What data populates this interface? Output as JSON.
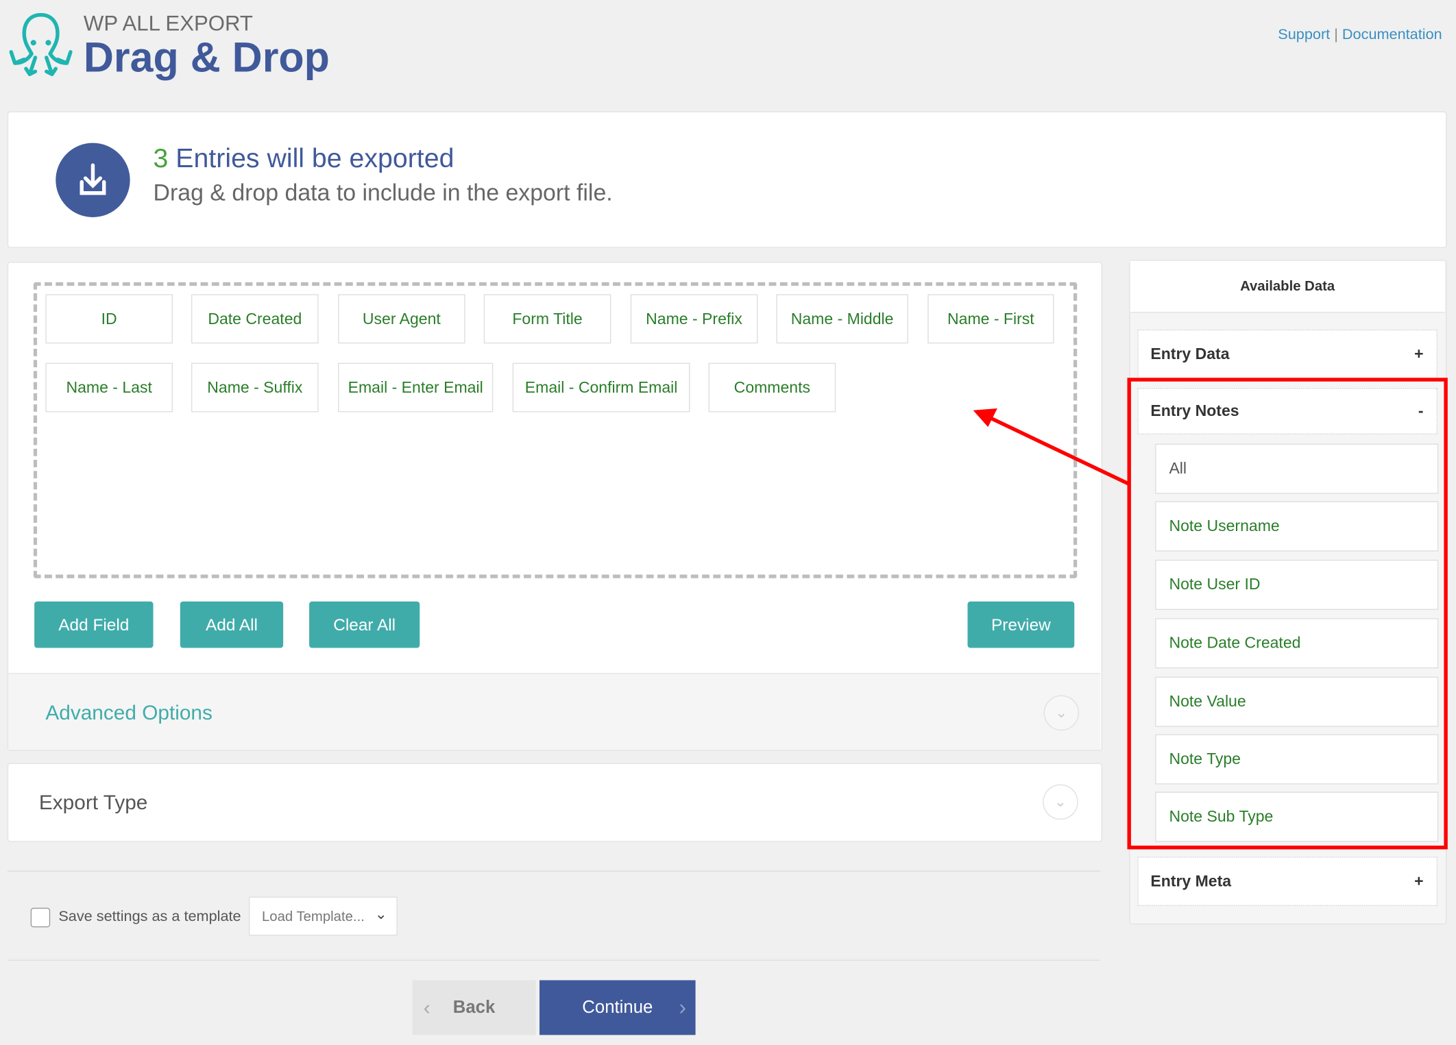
{
  "header": {
    "brand": "WP ALL EXPORT",
    "title": "Drag & Drop",
    "links": {
      "support": "Support",
      "separator": "|",
      "documentation": "Documentation"
    }
  },
  "summary": {
    "count": "3",
    "count_label": "Entries will be exported",
    "subtitle": "Drag & drop data to include in the export file.",
    "icon": "download-icon"
  },
  "fields": [
    "ID",
    "Date Created",
    "User Agent",
    "Form Title",
    "Name - Prefix",
    "Name - Middle",
    "Name - First",
    "Name - Last",
    "Name - Suffix",
    "Email - Enter Email",
    "Email - Confirm Email",
    "Comments"
  ],
  "buttons": {
    "add_field": "Add Field",
    "add_all": "Add All",
    "clear_all": "Clear All",
    "preview": "Preview"
  },
  "sections": {
    "advanced": "Advanced Options",
    "export_type": "Export Type"
  },
  "template": {
    "save_label": "Save settings as a template",
    "save_checked": false,
    "load_select": "Load Template..."
  },
  "nav": {
    "back": "Back",
    "continue": "Continue"
  },
  "available": {
    "title": "Available Data",
    "entry_data": {
      "label": "Entry Data",
      "toggle": "+"
    },
    "entry_notes": {
      "label": "Entry Notes",
      "toggle": "-",
      "items": [
        "All",
        "Note Username",
        "Note User ID",
        "Note Date Created",
        "Note Value",
        "Note Type",
        "Note Sub Type"
      ]
    },
    "entry_meta": {
      "label": "Entry Meta",
      "toggle": "+"
    }
  },
  "colors": {
    "brand_blue": "#40599a",
    "teal": "#40acaa",
    "field_green": "#2a7d2a",
    "count_green": "#46a33e",
    "highlight_red": "#ff0000"
  }
}
